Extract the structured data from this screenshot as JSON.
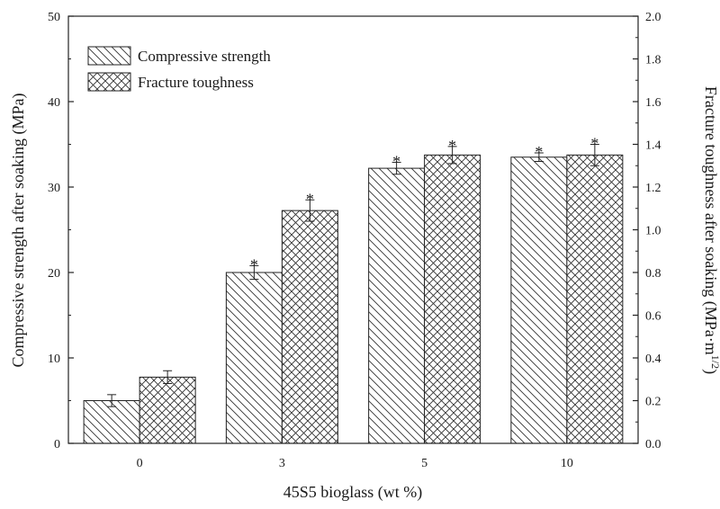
{
  "chart_data": {
    "type": "bar",
    "xlabel": "45S5 bioglass (wt %)",
    "ylabel_left": "Compressive strength after soaking (MPa)",
    "ylabel_right_main": "Fracture toughness after soaking (MPa·m",
    "ylabel_right_sup": "1/2",
    "ylabel_right_close": ")",
    "categories": [
      "0",
      "3",
      "5",
      "10"
    ],
    "ylim_left": [
      0,
      50
    ],
    "ylim_right": [
      0,
      2.0
    ],
    "yticks_left": [
      "0",
      "10",
      "20",
      "30",
      "40",
      "50"
    ],
    "yticks_right": [
      "0.0",
      "0.2",
      "0.4",
      "0.6",
      "0.8",
      "1.0",
      "1.2",
      "1.4",
      "1.6",
      "1.8",
      "2.0"
    ],
    "series": [
      {
        "name": "Compressive strength",
        "axis": "left",
        "pattern": "diagonal",
        "values": [
          5.0,
          20.0,
          32.2,
          33.5
        ],
        "errors": [
          0.7,
          0.8,
          0.7,
          0.5
        ],
        "significant": [
          false,
          true,
          true,
          true
        ]
      },
      {
        "name": "Fracture toughness",
        "axis": "right",
        "pattern": "crosshatch",
        "values": [
          0.31,
          1.09,
          1.35,
          1.35
        ],
        "errors": [
          0.03,
          0.05,
          0.04,
          0.05
        ],
        "significant": [
          false,
          true,
          true,
          true
        ]
      }
    ],
    "significance_marker": "*",
    "legend_position": "top-left",
    "grid": false
  }
}
